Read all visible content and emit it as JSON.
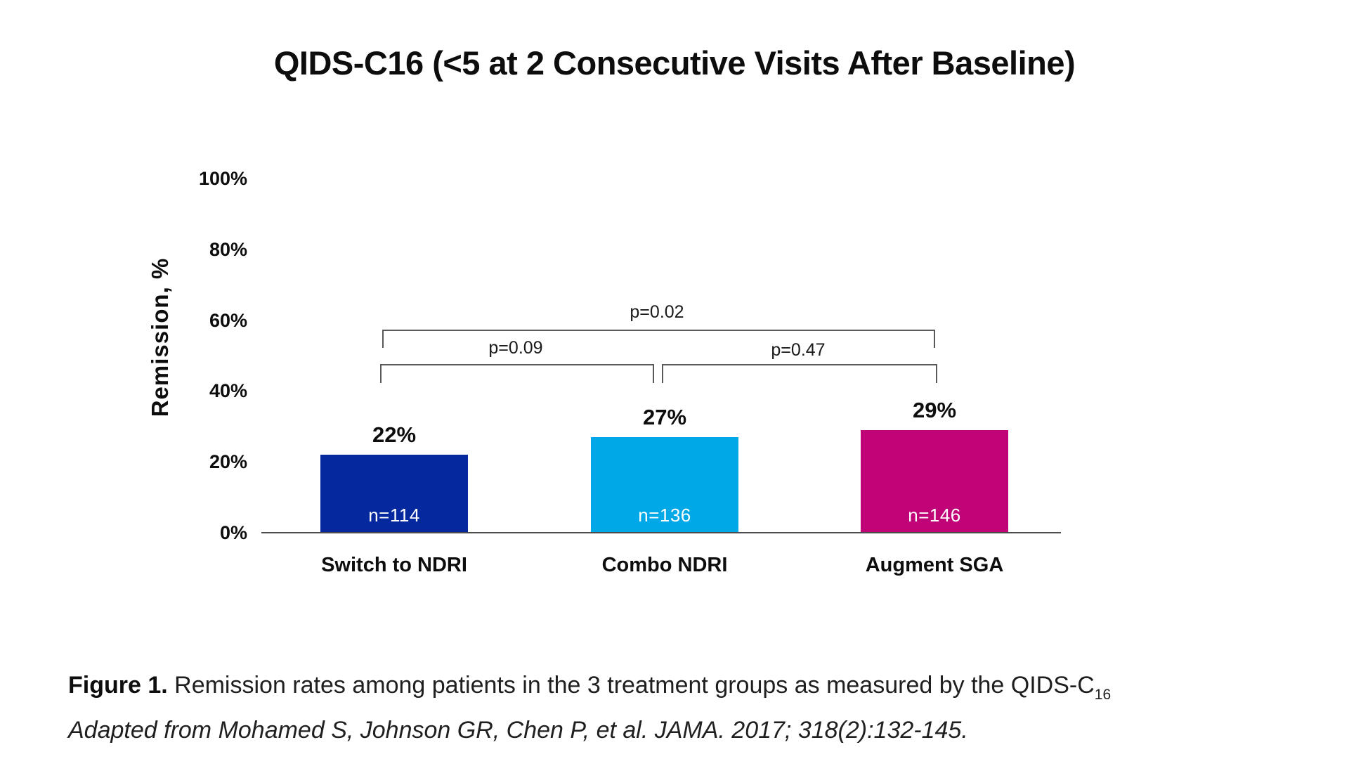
{
  "chart": {
    "title": "QIDS-C16 (<5 at 2 Consecutive Visits After Baseline)"
  },
  "chart_data": {
    "type": "bar",
    "title": "QIDS-C16 (<5 at 2 Consecutive Visits After Baseline)",
    "ylabel": "Remission, %",
    "ylim": [
      0,
      100
    ],
    "y_ticks": [
      "100%",
      "80%",
      "60%",
      "40%",
      "20%",
      "0%"
    ],
    "grid": false,
    "legend": false,
    "categories": [
      "Switch to NDRI",
      "Combo NDRI",
      "Augment SGA"
    ],
    "values": [
      22,
      27,
      29
    ],
    "value_labels": [
      "22%",
      "27%",
      "29%"
    ],
    "sample_sizes": [
      "n=114",
      "n=136",
      "n=146"
    ],
    "bar_colors": [
      "#06289E",
      "#00A8E8",
      "#C10378"
    ],
    "comparisons": [
      {
        "groups": [
          "Switch to NDRI",
          "Augment SGA"
        ],
        "label": "p=0.02"
      },
      {
        "groups": [
          "Switch to NDRI",
          "Combo NDRI"
        ],
        "label": "p=0.09"
      },
      {
        "groups": [
          "Combo NDRI",
          "Augment SGA"
        ],
        "label": "p=0.47"
      }
    ]
  },
  "caption": {
    "figure_label": "Figure 1.",
    "body": " Remission rates among patients in the 3 treatment groups as measured by the QIDS-C",
    "subscript": "16",
    "source_line": "Adapted from Mohamed S, Johnson GR, Chen P, et al. JAMA. 2017; 318(2):132-145."
  }
}
